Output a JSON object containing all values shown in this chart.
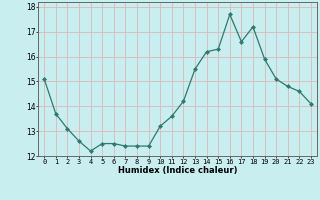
{
  "x": [
    0,
    1,
    2,
    3,
    4,
    5,
    6,
    7,
    8,
    9,
    10,
    11,
    12,
    13,
    14,
    15,
    16,
    17,
    18,
    19,
    20,
    21,
    22,
    23
  ],
  "y": [
    15.1,
    13.7,
    13.1,
    12.6,
    12.2,
    12.5,
    12.5,
    12.4,
    12.4,
    12.4,
    13.2,
    13.6,
    14.2,
    15.5,
    16.2,
    16.3,
    17.7,
    16.6,
    17.2,
    15.9,
    15.1,
    14.8,
    14.6,
    14.1
  ],
  "xlabel": "Humidex (Indice chaleur)",
  "ylim": [
    12,
    18
  ],
  "xlim": [
    -0.5,
    23.5
  ],
  "yticks": [
    12,
    13,
    14,
    15,
    16,
    17,
    18
  ],
  "xticks": [
    0,
    1,
    2,
    3,
    4,
    5,
    6,
    7,
    8,
    9,
    10,
    11,
    12,
    13,
    14,
    15,
    16,
    17,
    18,
    19,
    20,
    21,
    22,
    23
  ],
  "line_color": "#2d7a6e",
  "marker": "D",
  "marker_size": 2.0,
  "line_width": 0.9,
  "bg_color": "#c8eef0",
  "grid_color": "#dab8b8",
  "tick_fontsize": 5.0,
  "xlabel_fontsize": 6.0,
  "ytick_fontsize": 5.5
}
